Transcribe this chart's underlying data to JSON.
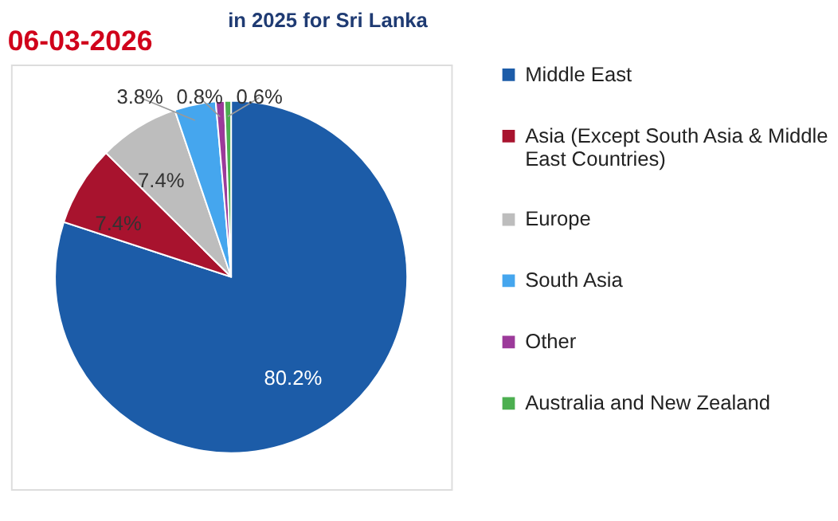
{
  "chart_data": {
    "type": "pie",
    "title": "in 2025 for Sri Lanka",
    "categories": [
      "Middle East",
      "Asia (Except South Asia & Middle East Countries)",
      "Europe",
      "South Asia",
      "Other",
      "Australia and New Zealand"
    ],
    "values": [
      80.2,
      7.4,
      7.4,
      3.8,
      0.8,
      0.6
    ],
    "colors": [
      "#1c5ca8",
      "#a8132e",
      "#bdbdbd",
      "#45a6ee",
      "#9c3a9a",
      "#4caf50"
    ],
    "value_labels": [
      "80.2%",
      "7.4%",
      "7.4%",
      "3.8%",
      "0.8%",
      "0.6%"
    ],
    "legend": "right",
    "annotations": [
      "06-03-2026"
    ]
  }
}
